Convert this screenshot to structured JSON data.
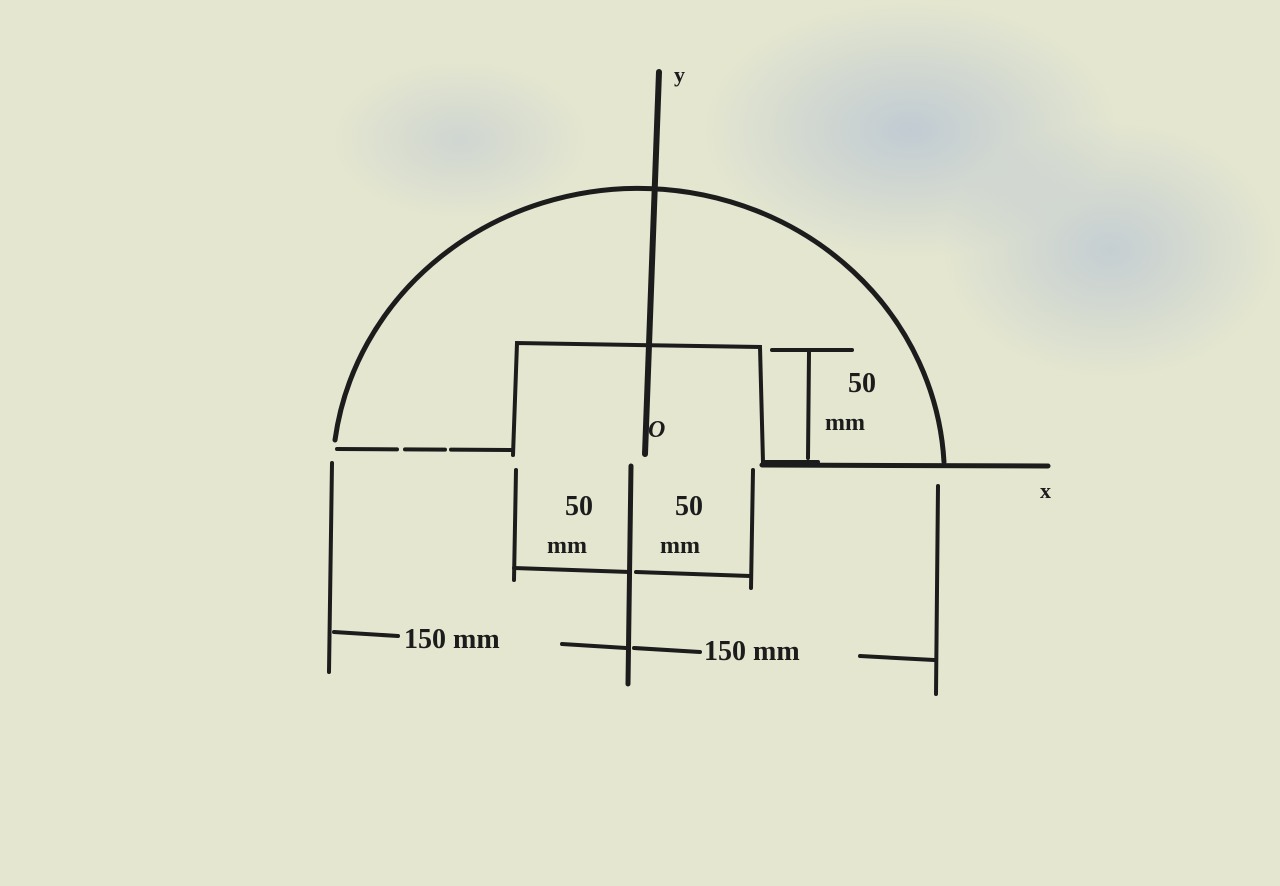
{
  "diagram": {
    "axis_labels": {
      "x": "x",
      "y": "y",
      "origin": "O"
    },
    "dimensions": {
      "square_height": "50",
      "square_height_unit": "mm",
      "left_inner": "50",
      "left_inner_unit": "mm",
      "right_inner": "50",
      "right_inner_unit": "mm",
      "left_radius": "150 mm",
      "right_radius": "150 mm"
    },
    "colors": {
      "paper": "#e4e6cf",
      "ink": "#1c1c1c",
      "smudge": "#a9b7d8"
    }
  }
}
